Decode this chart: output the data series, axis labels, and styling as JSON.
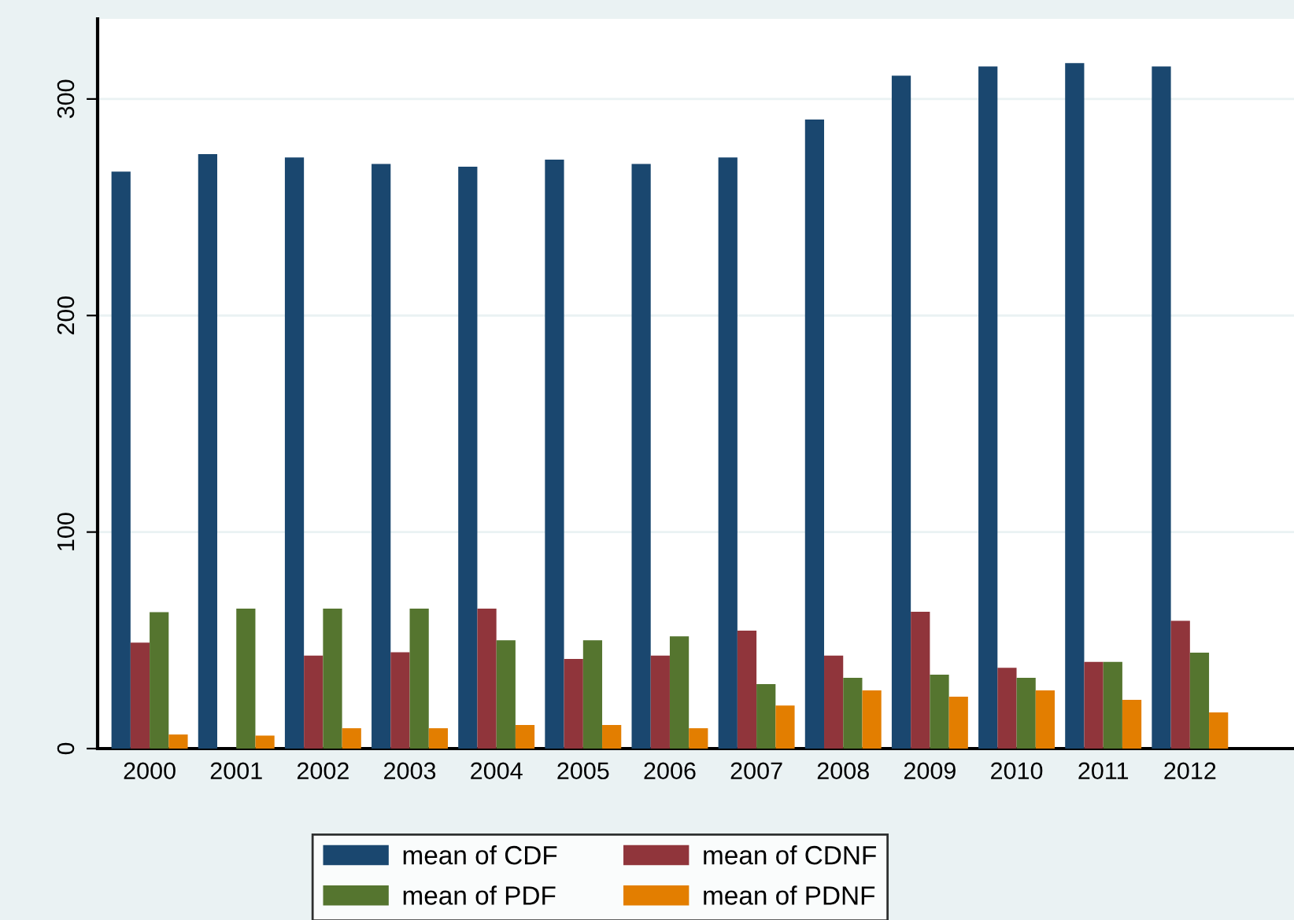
{
  "chart_data": {
    "type": "bar",
    "categories": [
      "2000",
      "2001",
      "2002",
      "2003",
      "2004",
      "2005",
      "2006",
      "2007",
      "2008",
      "2009",
      "2010",
      "2011",
      "2012"
    ],
    "series": [
      {
        "name": "mean of CDF",
        "color": "#1a476f",
        "values": [
          266.5,
          274.5,
          273,
          270,
          268.7,
          272,
          270,
          273,
          290.5,
          310.8,
          315,
          316.6,
          315
        ]
      },
      {
        "name": "mean of CDNF",
        "color": "#90353b",
        "values": [
          48.9,
          null,
          42.9,
          44.5,
          64.6,
          41.4,
          42.9,
          54.5,
          42.9,
          63.2,
          37.3,
          40,
          59
        ]
      },
      {
        "name": "mean of PDF",
        "color": "#55752f",
        "values": [
          63,
          64.6,
          64.6,
          64.6,
          50,
          50,
          51.8,
          29.8,
          32.7,
          34.1,
          32.7,
          40,
          44.3
        ]
      },
      {
        "name": "mean of PDNF",
        "color": "#e37e00",
        "values": [
          6.5,
          6,
          9.4,
          9.4,
          10.9,
          10.9,
          9.4,
          19.9,
          26.9,
          24,
          26.9,
          22.5,
          16.7
        ]
      }
    ],
    "ylim": [
      0,
      337
    ],
    "yticks": [
      0,
      100,
      200,
      300
    ],
    "grid": "y",
    "legend": "bottom"
  }
}
